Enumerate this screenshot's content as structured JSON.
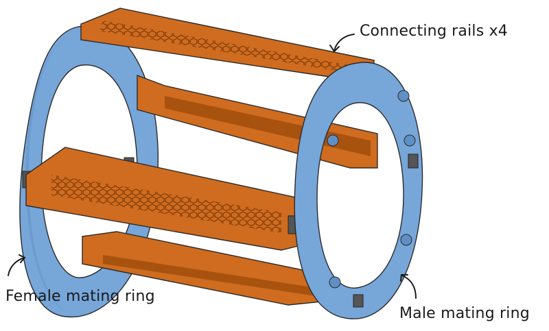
{
  "labels": {
    "connecting_rails": "Connecting rails x4",
    "female_ring": "Female mating ring",
    "male_ring": "Male mating ring"
  },
  "colors": {
    "ring_blue": "#77a6d9",
    "ring_blue_dark": "#5f8fc4",
    "rail_orange": "#d06c1f",
    "rail_orange_dark": "#a8520f",
    "outline": "#2a2a2a"
  }
}
